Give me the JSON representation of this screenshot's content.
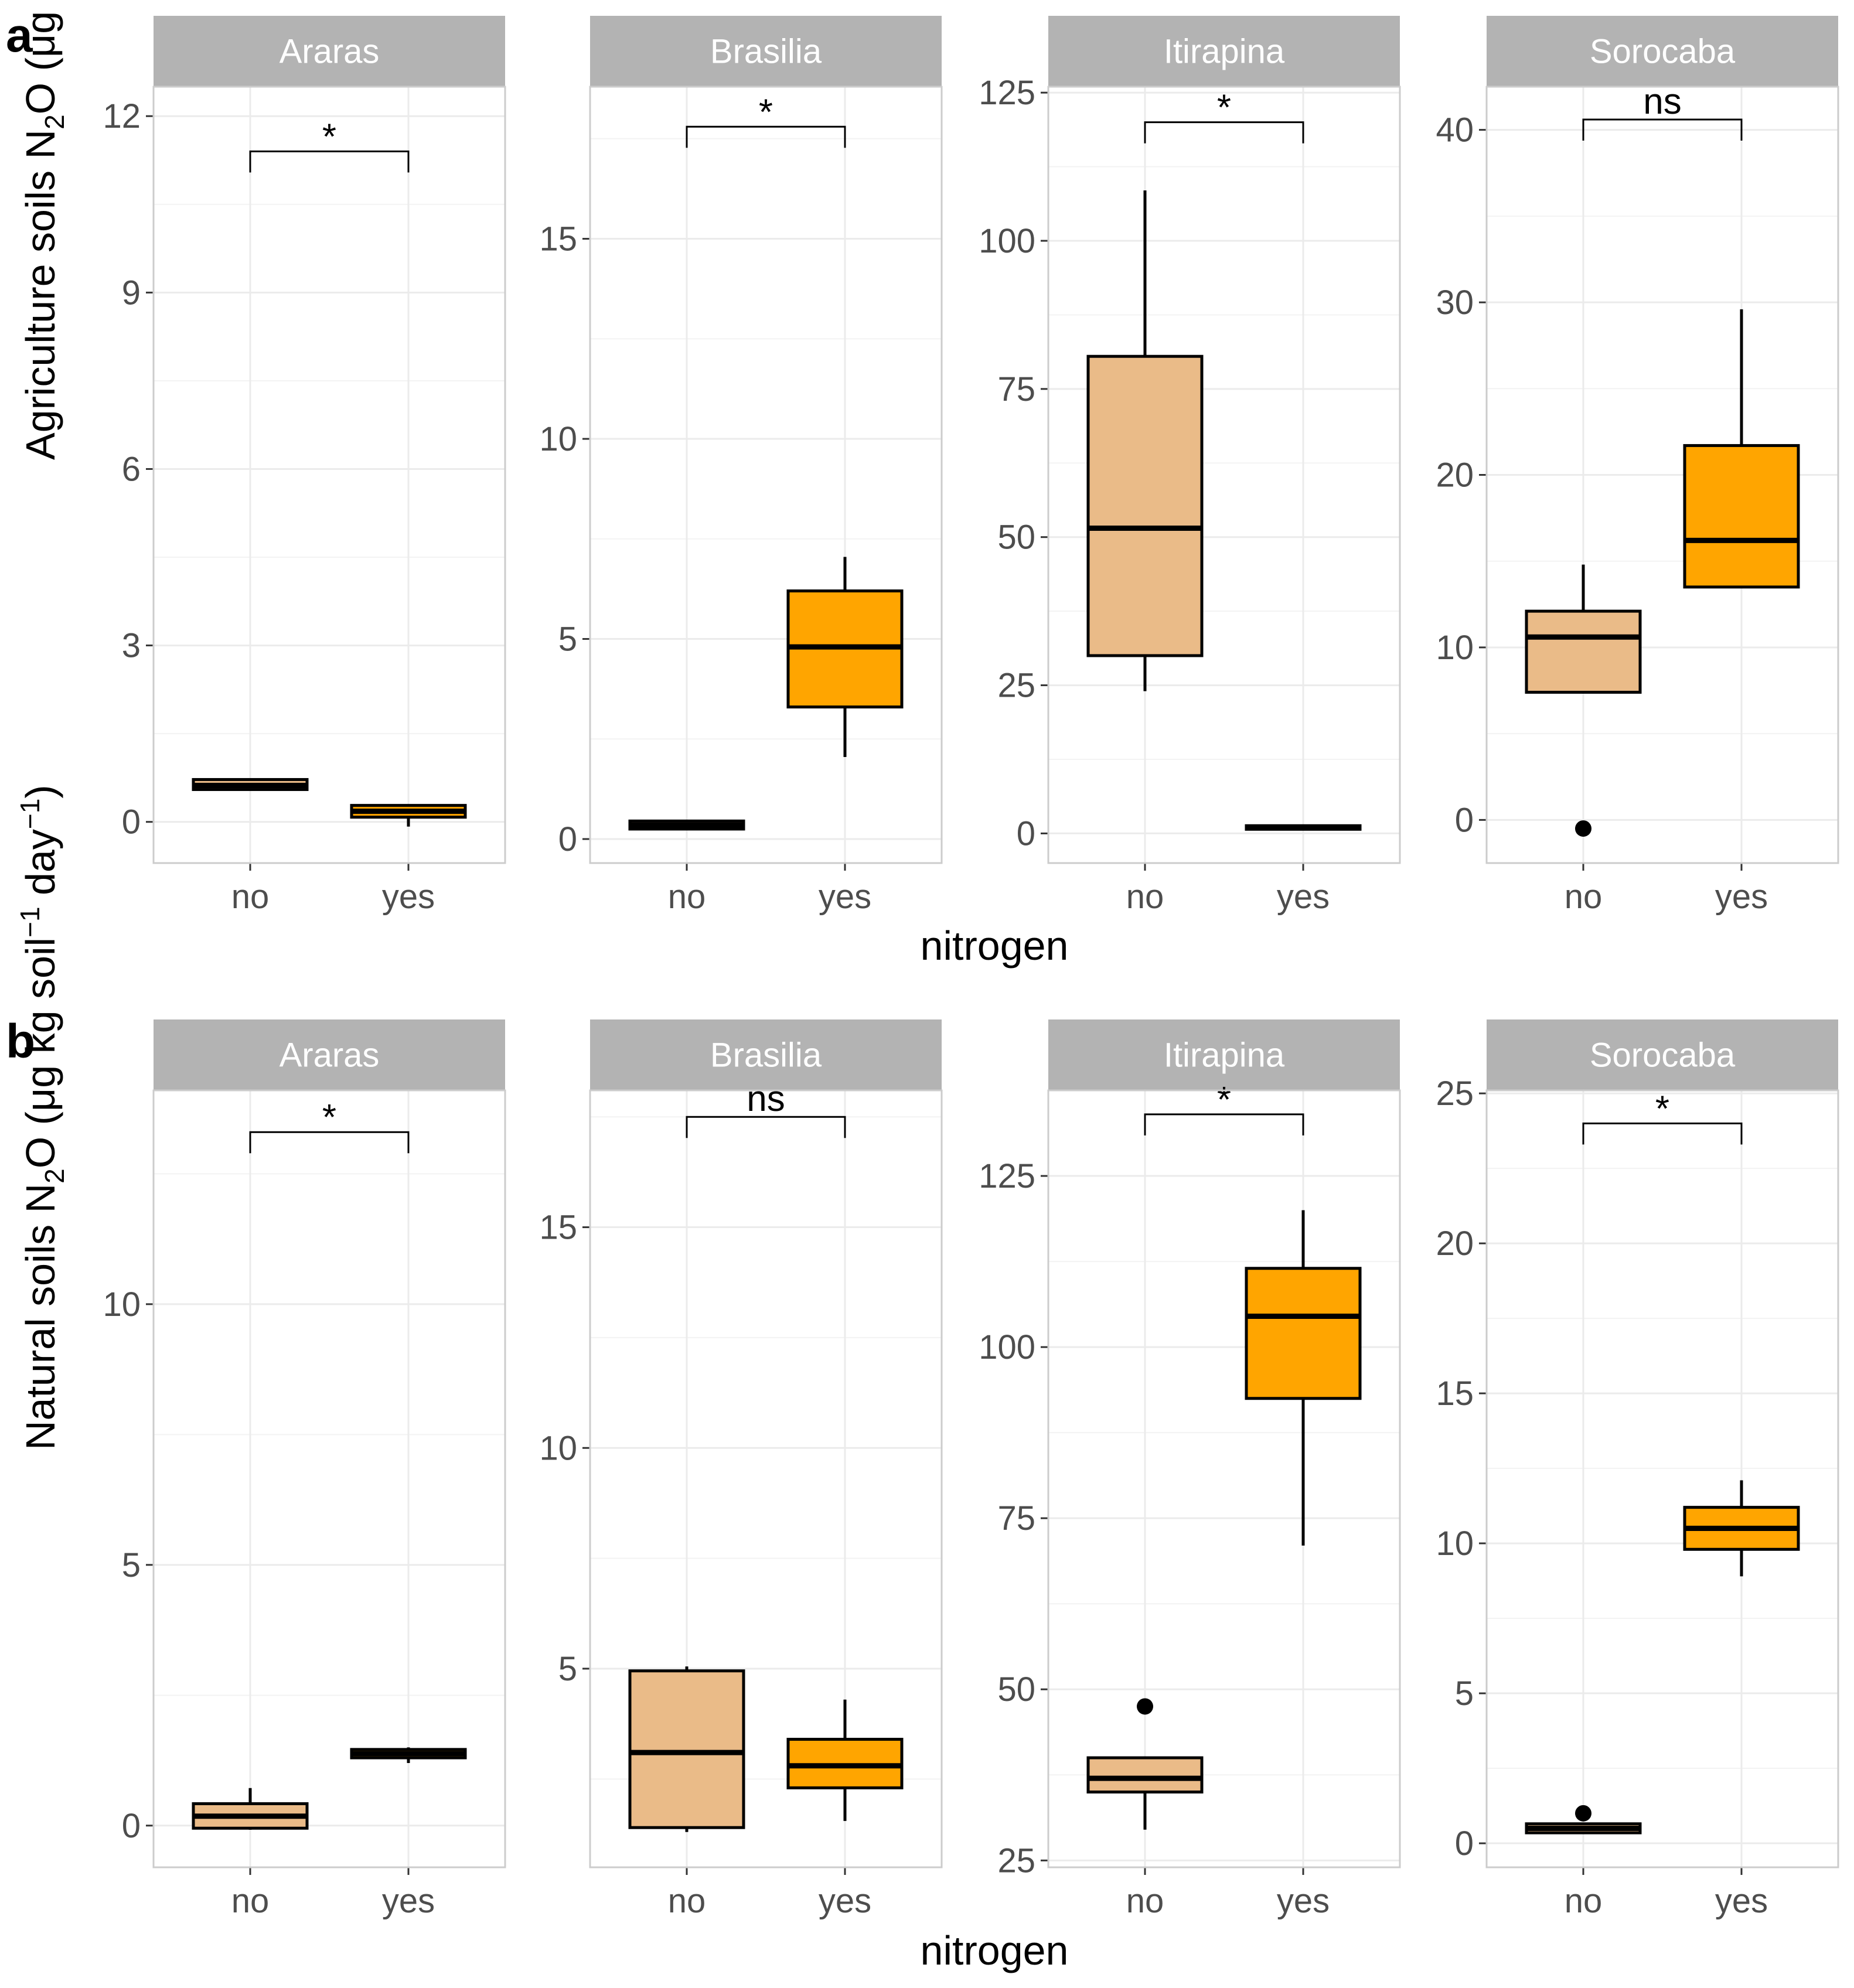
{
  "figure": {
    "colors": {
      "no_fill": "#eabb88",
      "yes_fill": "#ffa500",
      "strip_bg": "#b3b3b3",
      "strip_text": "#ffffff",
      "grid": "#ebebeb",
      "panel_border": "#cccccc",
      "tick_text": "#4d4d4d"
    }
  },
  "chart_data": [
    {
      "type": "boxplot",
      "panel_label": "a",
      "ylabel_pre": "Agriculture soils N",
      "xlabel": "nitrogen",
      "categories": [
        "no",
        "yes"
      ],
      "facets": [
        {
          "title": "Araras",
          "ylim": [
            -0.7,
            12.5
          ],
          "yticks": [
            0,
            3,
            6,
            9,
            12
          ],
          "ytick_labels": [
            "0",
            "3",
            "6",
            "9",
            "12"
          ],
          "sig": "*",
          "bracket_y": 11.4,
          "boxes": [
            {
              "group": "no",
              "min": 0.55,
              "q1": 0.55,
              "median": 0.62,
              "q3": 0.72,
              "max": 0.72,
              "outliers": []
            },
            {
              "group": "yes",
              "min": -0.08,
              "q1": 0.08,
              "median": 0.18,
              "q3": 0.28,
              "max": 0.3,
              "outliers": []
            }
          ]
        },
        {
          "title": "Brasilia",
          "ylim": [
            -0.6,
            18.8
          ],
          "yticks": [
            0,
            5,
            10,
            15
          ],
          "ytick_labels": [
            "0",
            "5",
            "10",
            "15"
          ],
          "sig": "*",
          "bracket_y": 17.8,
          "boxes": [
            {
              "group": "no",
              "min": 0.25,
              "q1": 0.25,
              "median": 0.35,
              "q3": 0.45,
              "max": 0.45,
              "outliers": []
            },
            {
              "group": "yes",
              "min": 2.05,
              "q1": 3.3,
              "median": 4.8,
              "q3": 6.2,
              "max": 7.05,
              "outliers": []
            }
          ]
        },
        {
          "title": "Itirapina",
          "ylim": [
            -5,
            126
          ],
          "yticks": [
            0,
            25,
            50,
            75,
            100,
            125
          ],
          "ytick_labels": [
            "0",
            "25",
            "50",
            "75",
            "100",
            "125"
          ],
          "sig": "*",
          "bracket_y": 120,
          "boxes": [
            {
              "group": "no",
              "min": 24,
              "q1": 30,
              "median": 51.5,
              "q3": 80.5,
              "max": 108.5,
              "outliers": []
            },
            {
              "group": "yes",
              "min": 0.7,
              "q1": 0.7,
              "median": 1,
              "q3": 1.3,
              "max": 1.3,
              "outliers": []
            }
          ]
        },
        {
          "title": "Sorocaba",
          "ylim": [
            -2.5,
            42.5
          ],
          "yticks": [
            0,
            10,
            20,
            30,
            40
          ],
          "ytick_labels": [
            "0",
            "10",
            "20",
            "30",
            "40"
          ],
          "sig": "ns",
          "bracket_y": 40.6,
          "boxes": [
            {
              "group": "no",
              "min": 7.4,
              "q1": 7.4,
              "median": 10.6,
              "q3": 12.1,
              "max": 14.8,
              "outliers": [
                -0.5
              ]
            },
            {
              "group": "yes",
              "min": 13.5,
              "q1": 13.5,
              "median": 16.2,
              "q3": 21.7,
              "max": 29.6,
              "outliers": []
            }
          ]
        }
      ]
    },
    {
      "type": "boxplot",
      "panel_label": "b",
      "ylabel_pre": "Natural soils N",
      "xlabel": "nitrogen",
      "categories": [
        "no",
        "yes"
      ],
      "facets": [
        {
          "title": "Araras",
          "ylim": [
            -0.8,
            14.1
          ],
          "yticks": [
            0,
            5,
            10
          ],
          "ytick_labels": [
            "0",
            "5",
            "10"
          ],
          "sig": "*",
          "bracket_y": 13.3,
          "boxes": [
            {
              "group": "no",
              "min": -0.08,
              "q1": -0.05,
              "median": 0.18,
              "q3": 0.42,
              "max": 0.72,
              "outliers": []
            },
            {
              "group": "yes",
              "min": 1.2,
              "q1": 1.3,
              "median": 1.38,
              "q3": 1.46,
              "max": 1.5,
              "outliers": []
            }
          ]
        },
        {
          "title": "Brasilia",
          "ylim": [
            0.5,
            18.1
          ],
          "yticks": [
            5,
            10,
            15
          ],
          "ytick_labels": [
            "5",
            "10",
            "15"
          ],
          "sig": "ns",
          "bracket_y": 17.5,
          "boxes": [
            {
              "group": "no",
              "min": 1.3,
              "q1": 1.4,
              "median": 3.1,
              "q3": 4.95,
              "max": 5.05,
              "outliers": []
            },
            {
              "group": "yes",
              "min": 1.55,
              "q1": 2.3,
              "median": 2.8,
              "q3": 3.4,
              "max": 4.3,
              "outliers": []
            }
          ]
        },
        {
          "title": "Itirapina",
          "ylim": [
            24,
            137.5
          ],
          "yticks": [
            25,
            50,
            75,
            100,
            125
          ],
          "ytick_labels": [
            "25",
            "50",
            "75",
            "100",
            "125"
          ],
          "sig": "*",
          "bracket_y": 134,
          "boxes": [
            {
              "group": "no",
              "min": 29.5,
              "q1": 35,
              "median": 37,
              "q3": 40,
              "max": 40,
              "outliers": [
                47.5
              ]
            },
            {
              "group": "yes",
              "min": 71,
              "q1": 92.5,
              "median": 104.5,
              "q3": 111.5,
              "max": 120,
              "outliers": []
            }
          ]
        },
        {
          "title": "Sorocaba",
          "ylim": [
            -0.8,
            25.1
          ],
          "yticks": [
            0,
            5,
            10,
            15,
            20,
            25
          ],
          "ytick_labels": [
            "0",
            "5",
            "10",
            "15",
            "20",
            "25"
          ],
          "sig": "*",
          "bracket_y": 24,
          "boxes": [
            {
              "group": "no",
              "min": 0.35,
              "q1": 0.35,
              "median": 0.5,
              "q3": 0.65,
              "max": 0.65,
              "outliers": [
                1
              ]
            },
            {
              "group": "yes",
              "min": 8.9,
              "q1": 9.8,
              "median": 10.5,
              "q3": 11.2,
              "max": 12.1,
              "outliers": []
            }
          ]
        }
      ]
    }
  ]
}
